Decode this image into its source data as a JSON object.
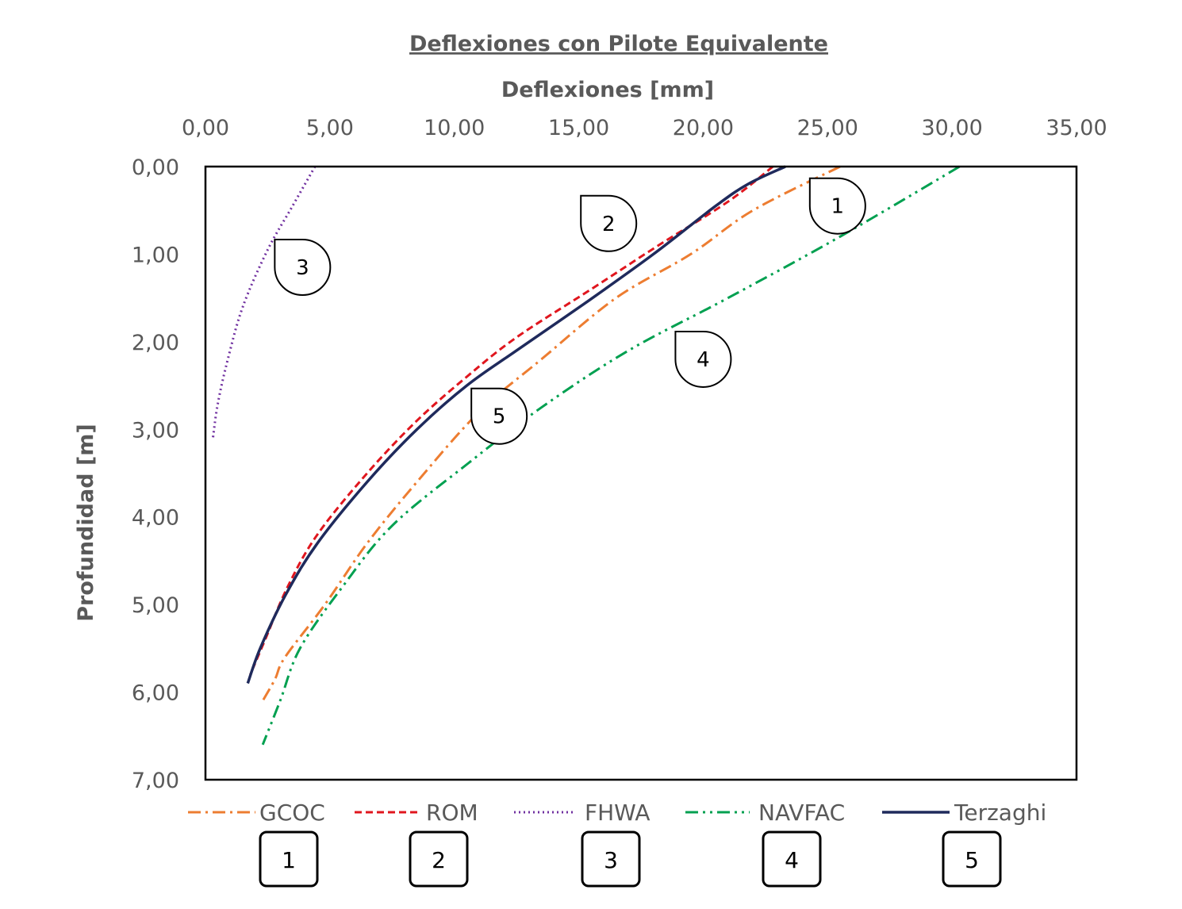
{
  "chart_data": {
    "type": "line",
    "title": "Deflexiones con Pilote Equivalente",
    "xlabel": "Deflexiones [mm]",
    "ylabel": "Profundidad [m]",
    "xlim": [
      0,
      35
    ],
    "ylim": [
      0,
      7
    ],
    "x_axis_position": "top",
    "y_axis_inverted": true,
    "x_ticks": [
      "0,00",
      "5,00",
      "10,00",
      "15,00",
      "20,00",
      "25,00",
      "30,00",
      "35,00"
    ],
    "y_ticks": [
      "0,00",
      "1,00",
      "2,00",
      "3,00",
      "4,00",
      "5,00",
      "6,00",
      "7,00"
    ],
    "grid": false,
    "legend_position": "bottom",
    "series": [
      {
        "name": "GCOC",
        "label_number": "1",
        "color": "#ED7D31",
        "dash": "dash-dot",
        "points": [
          [
            25.5,
            0
          ],
          [
            22,
            0.5
          ],
          [
            19.5,
            1.0
          ],
          [
            16.5,
            1.5
          ],
          [
            13.5,
            2.2
          ],
          [
            11,
            2.8
          ],
          [
            8.5,
            3.6
          ],
          [
            6.5,
            4.3
          ],
          [
            4.8,
            5.0
          ],
          [
            3.2,
            5.6
          ],
          [
            2.8,
            5.85
          ],
          [
            2.3,
            6.1
          ]
        ]
      },
      {
        "name": "ROM",
        "label_number": "2",
        "color": "#E0161E",
        "dash": "dash",
        "points": [
          [
            22.8,
            0
          ],
          [
            21,
            0.4
          ],
          [
            18.2,
            0.9
          ],
          [
            15.5,
            1.4
          ],
          [
            12.5,
            1.95
          ],
          [
            10.5,
            2.4
          ],
          [
            8.5,
            2.9
          ],
          [
            6.5,
            3.5
          ],
          [
            4.5,
            4.2
          ],
          [
            3.3,
            4.8
          ],
          [
            2.4,
            5.4
          ],
          [
            1.8,
            5.8
          ]
        ]
      },
      {
        "name": "FHWA",
        "label_number": "3",
        "color": "#7030A0",
        "dash": "dot",
        "points": [
          [
            4.4,
            0
          ],
          [
            3.5,
            0.45
          ],
          [
            2.5,
            0.95
          ],
          [
            1.5,
            1.6
          ],
          [
            0.9,
            2.2
          ],
          [
            0.5,
            2.7
          ],
          [
            0.3,
            3.1
          ]
        ]
      },
      {
        "name": "NAVFAC",
        "label_number": "4",
        "color": "#00A050",
        "dash": "dash-dot-dot",
        "points": [
          [
            30.3,
            0
          ],
          [
            25.5,
            0.8
          ],
          [
            21,
            1.5
          ],
          [
            17,
            2.1
          ],
          [
            13.5,
            2.75
          ],
          [
            10.5,
            3.4
          ],
          [
            7.5,
            4.1
          ],
          [
            5.5,
            4.8
          ],
          [
            3.8,
            5.5
          ],
          [
            3,
            6.1
          ],
          [
            2.3,
            6.6
          ]
        ]
      },
      {
        "name": "Terzaghi",
        "label_number": "5",
        "color": "#1F2A5C",
        "dash": "solid",
        "points": [
          [
            23.3,
            0
          ],
          [
            21.8,
            0.2
          ],
          [
            20.5,
            0.45
          ],
          [
            18,
            1.0
          ],
          [
            15.3,
            1.55
          ],
          [
            12.5,
            2.1
          ],
          [
            10.5,
            2.5
          ],
          [
            8.5,
            3.0
          ],
          [
            6.5,
            3.6
          ],
          [
            4.5,
            4.3
          ],
          [
            3.2,
            4.9
          ],
          [
            2.2,
            5.5
          ],
          [
            1.7,
            5.9
          ]
        ]
      }
    ],
    "callouts": [
      {
        "label": "1",
        "x": 25.4,
        "y": 0.45
      },
      {
        "label": "2",
        "x": 16.2,
        "y": 0.65
      },
      {
        "label": "3",
        "x": 3.9,
        "y": 1.15
      },
      {
        "label": "4",
        "x": 20.0,
        "y": 2.2
      },
      {
        "label": "5",
        "x": 11.8,
        "y": 2.85
      }
    ]
  }
}
